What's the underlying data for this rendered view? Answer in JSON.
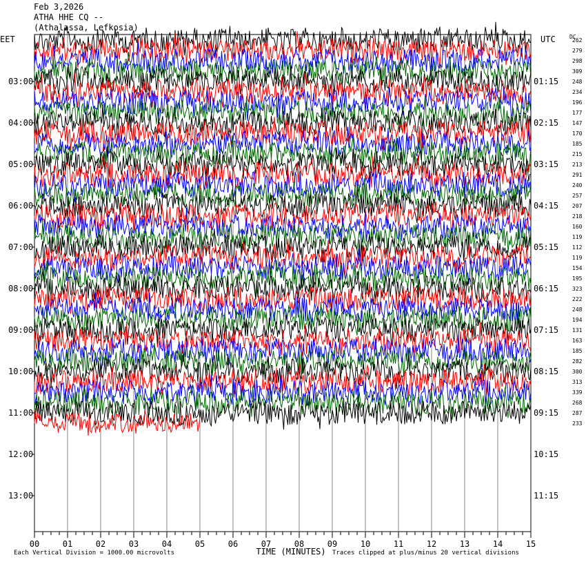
{
  "header": {
    "date": "Feb 3,2026",
    "station": "ATHA HHE CQ --",
    "location": "(Athalassa, Lefkosia)"
  },
  "chart_data": {
    "type": "line",
    "subtype": "helicorder",
    "left_axis_label": "EET",
    "right_axis_label": "UTC",
    "dc_label": "DC",
    "left_ticks": [
      "03:00",
      "04:00",
      "05:00",
      "06:00",
      "07:00",
      "08:00",
      "09:00",
      "10:00",
      "11:00",
      "12:00",
      "13:00"
    ],
    "right_ticks": [
      "01:15",
      "02:15",
      "03:15",
      "04:15",
      "05:15",
      "06:15",
      "07:15",
      "08:15",
      "09:15",
      "10:15",
      "11:15"
    ],
    "x_ticks": [
      "00",
      "01",
      "02",
      "03",
      "04",
      "05",
      "06",
      "07",
      "08",
      "09",
      "10",
      "11",
      "12",
      "13",
      "14",
      "15"
    ],
    "xlabel": "TIME (MINUTES)",
    "xlim": [
      0,
      15
    ],
    "scale_note": "Each Vertical Division = 1000.00 microvolts",
    "clip_note": "Traces clipped at plus/minus 20 vertical divisions",
    "trace_colors": [
      "#000000",
      "#ff0000",
      "#0000ff",
      "#006400"
    ],
    "dc_offsets": [
      262,
      279,
      298,
      309,
      248,
      234,
      196,
      177,
      147,
      170,
      185,
      215,
      213,
      291,
      240,
      257,
      207,
      218,
      160,
      119,
      112,
      119,
      154,
      195,
      323,
      222,
      248,
      194,
      131,
      163,
      185,
      282,
      300,
      313,
      339,
      268,
      287,
      233
    ],
    "trace_count": 38,
    "last_trace_minutes": 5
  }
}
